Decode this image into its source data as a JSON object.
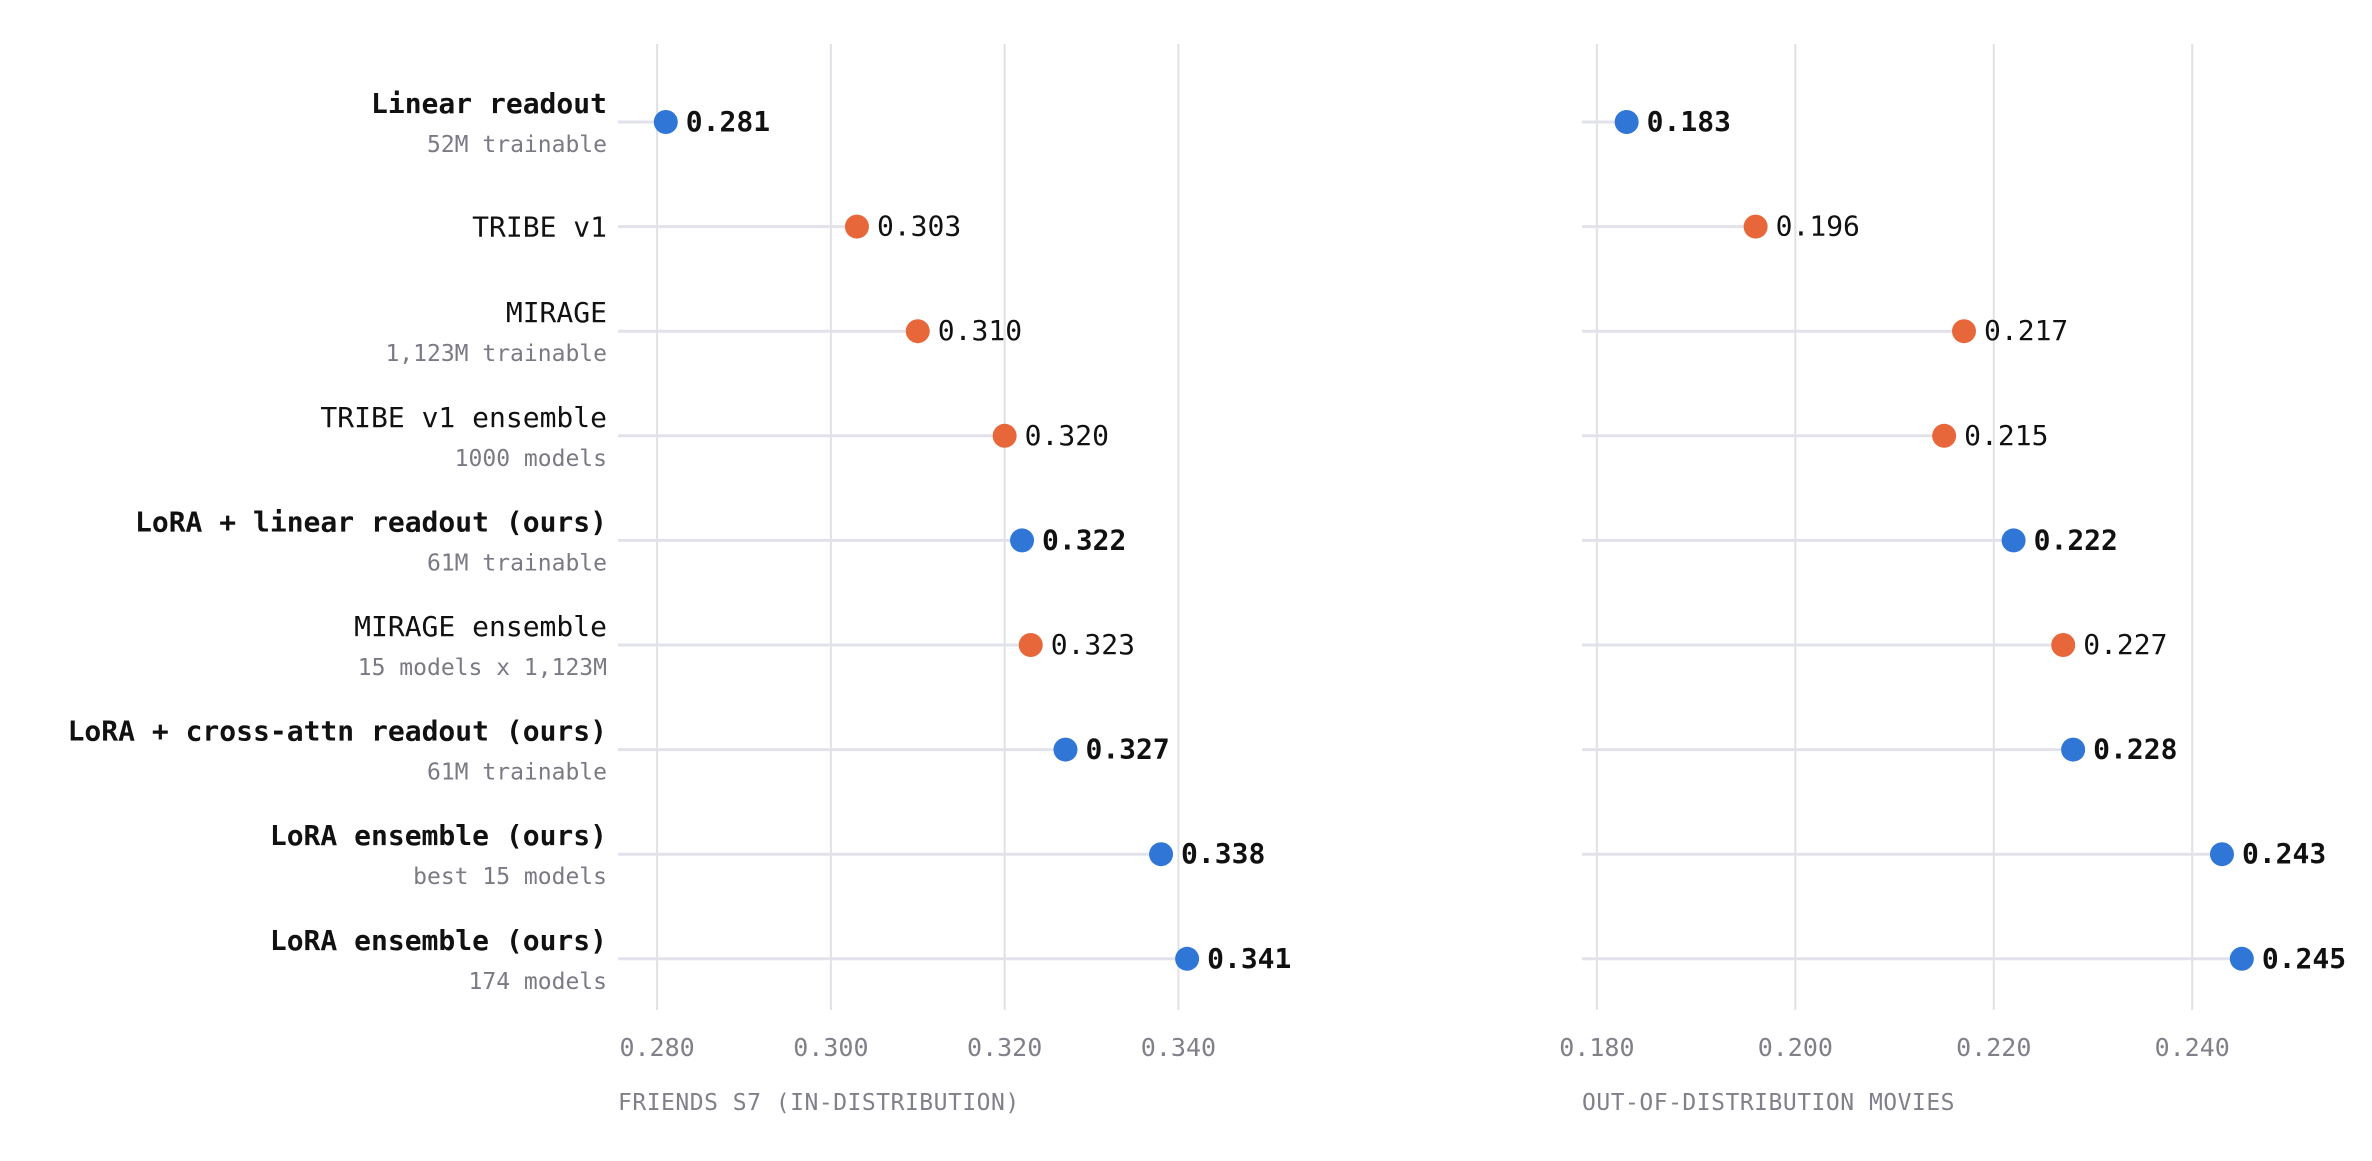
{
  "chart_data": {
    "type": "scatter",
    "colors": {
      "ours": "#2f76d6",
      "baseline": "#e8673a",
      "grid": "#e0e0e6",
      "stem": "#e2e3ea"
    },
    "rows": [
      {
        "label": "Linear readout",
        "sublabel": "52M trainable",
        "bold": true,
        "group": "ours",
        "values": [
          0.281,
          0.183
        ],
        "value_labels": [
          "0.281",
          "0.183"
        ]
      },
      {
        "label": "TRIBE v1",
        "sublabel": "",
        "bold": false,
        "group": "baseline",
        "values": [
          0.303,
          0.196
        ],
        "value_labels": [
          "0.303",
          "0.196"
        ]
      },
      {
        "label": "MIRAGE",
        "sublabel": "1,123M trainable",
        "bold": false,
        "group": "baseline",
        "values": [
          0.31,
          0.217
        ],
        "value_labels": [
          "0.310",
          "0.217"
        ]
      },
      {
        "label": "TRIBE v1 ensemble",
        "sublabel": "1000 models",
        "bold": false,
        "group": "baseline",
        "values": [
          0.32,
          0.215
        ],
        "value_labels": [
          "0.320",
          "0.215"
        ]
      },
      {
        "label": "LoRA + linear readout (ours)",
        "sublabel": "61M trainable",
        "bold": true,
        "group": "ours",
        "values": [
          0.322,
          0.222
        ],
        "value_labels": [
          "0.322",
          "0.222"
        ]
      },
      {
        "label": "MIRAGE ensemble",
        "sublabel": "15 models x 1,123M",
        "bold": false,
        "group": "baseline",
        "values": [
          0.323,
          0.227
        ],
        "value_labels": [
          "0.323",
          "0.227"
        ]
      },
      {
        "label": "LoRA + cross-attn readout (ours)",
        "sublabel": "61M trainable",
        "bold": true,
        "group": "ours",
        "values": [
          0.327,
          0.228
        ],
        "value_labels": [
          "0.327",
          "0.228"
        ]
      },
      {
        "label": "LoRA ensemble (ours)",
        "sublabel": "best 15 models",
        "bold": true,
        "group": "ours",
        "values": [
          0.338,
          0.243
        ],
        "value_labels": [
          "0.338",
          "0.243"
        ]
      },
      {
        "label": "LoRA ensemble (ours)",
        "sublabel": "174 models",
        "bold": true,
        "group": "ours",
        "values": [
          0.341,
          0.245
        ],
        "value_labels": [
          "0.341",
          "0.245"
        ]
      }
    ],
    "panels": [
      {
        "xlabel": "FRIENDS S7 (IN-DISTRIBUTION)",
        "xlim": [
          0.2755,
          0.3655
        ],
        "ticks": [
          0.28,
          0.3,
          0.32,
          0.34
        ],
        "tick_labels": [
          "0.280",
          "0.300",
          "0.320",
          "0.340"
        ]
      },
      {
        "xlabel": "OUT-OF-DISTRIBUTION MOVIES",
        "xlim": [
          0.1785,
          0.2555
        ],
        "ticks": [
          0.18,
          0.2,
          0.22,
          0.24
        ],
        "tick_labels": [
          "0.180",
          "0.200",
          "0.220",
          "0.240"
        ]
      }
    ],
    "grid": true
  }
}
